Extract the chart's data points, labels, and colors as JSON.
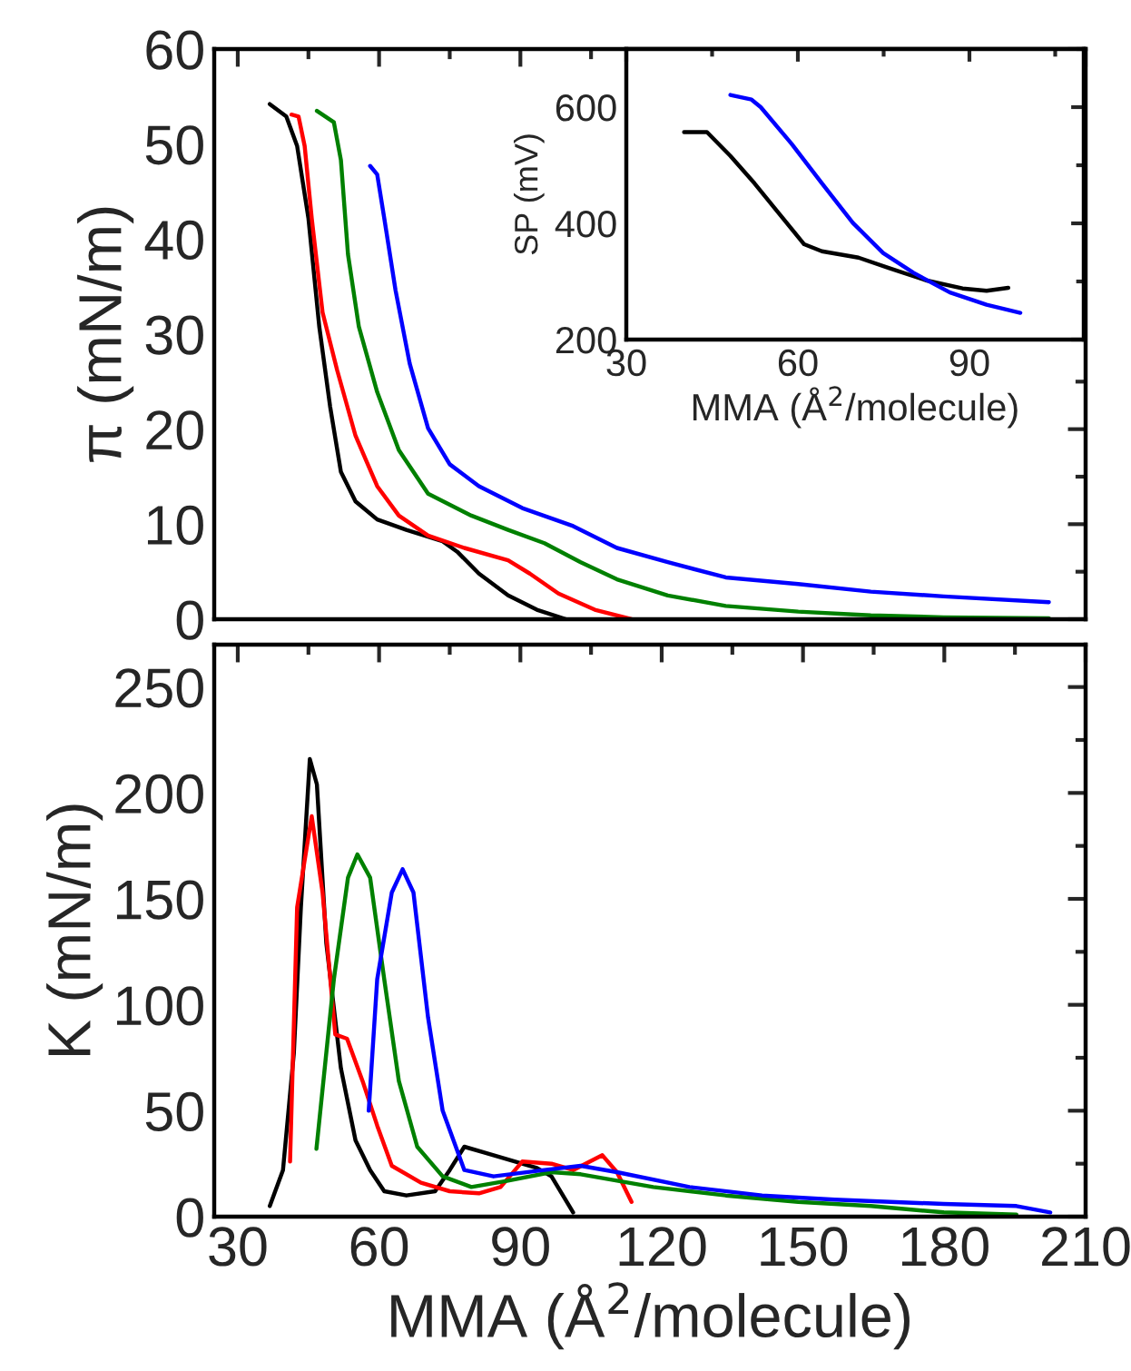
{
  "chart_data": [
    {
      "type": "line",
      "ylabel": "π (mN/m)",
      "xlim": [
        25,
        210
      ],
      "xticks": [
        30,
        60,
        90,
        120,
        150,
        180,
        210
      ],
      "ylim": [
        0,
        60
      ],
      "yticks": [
        0,
        10,
        20,
        30,
        40,
        50,
        60
      ],
      "tick_labels": "y",
      "legend": false,
      "series": [
        {
          "color": "#000000",
          "x": [
            36.8,
            40.3,
            42.6,
            45,
            47.3,
            49.6,
            51.9,
            55,
            59.6,
            65.8,
            73.5,
            76.6,
            81.2,
            87.4,
            93.5,
            99.7
          ],
          "values": [
            54.2,
            52.9,
            49.8,
            42.2,
            30.8,
            22.4,
            15.5,
            12.4,
            10.5,
            9.4,
            8.2,
            7.1,
            4.8,
            2.5,
            1.0,
            0
          ]
        },
        {
          "color": "#ff0000",
          "x": [
            41.4,
            42.9,
            44.2,
            45.7,
            48,
            51.1,
            55,
            59.6,
            64.2,
            70.4,
            78.1,
            87.4,
            92,
            98.1,
            105.8,
            113.6
          ],
          "values": [
            53.1,
            52.9,
            49.8,
            42.2,
            32.3,
            26.2,
            19.3,
            14,
            10.9,
            8.8,
            7.5,
            6.2,
            4.8,
            2.7,
            1.0,
            0
          ]
        },
        {
          "color": "#008000",
          "x": [
            46.8,
            50.4,
            51.9,
            53.4,
            55.7,
            59.6,
            64.2,
            70.4,
            79.6,
            87.4,
            95.1,
            102.8,
            110.5,
            121.3,
            133.6,
            149,
            164.4,
            179.9,
            202.2
          ],
          "values": [
            53.5,
            52.3,
            48.3,
            38.4,
            30.8,
            23.9,
            17.8,
            13.2,
            10.9,
            9.4,
            8.0,
            6.0,
            4.2,
            2.5,
            1.4,
            0.8,
            0.4,
            0.2,
            0.1
          ]
        },
        {
          "color": "#0000ff",
          "x": [
            58.1,
            59.6,
            61.1,
            63.5,
            66.5,
            70.4,
            75,
            81.2,
            90.4,
            101.2,
            110.5,
            121.3,
            133.6,
            149,
            164.4,
            179.9,
            202.2
          ],
          "values": [
            47.7,
            46.8,
            42.2,
            34.6,
            26.9,
            20.1,
            16.3,
            14.0,
            11.7,
            9.8,
            7.5,
            6.0,
            4.4,
            3.7,
            2.9,
            2.4,
            1.8
          ]
        }
      ]
    },
    {
      "type": "line",
      "xlabel": "MMA (Å$^{2}$/molecule)",
      "ylabel": "SP (mV)",
      "xlim": [
        30,
        110
      ],
      "xticks": [
        30,
        60,
        90
      ],
      "ylim": [
        200,
        700
      ],
      "yticks": [
        200,
        400,
        600
      ],
      "legend": false,
      "series": [
        {
          "color": "#000000",
          "x": [
            40.1,
            44.1,
            48.2,
            52.4,
            56.7,
            61.1,
            64.2,
            70.6,
            76,
            82.4,
            88.8,
            93,
            96.8
          ],
          "values": [
            557,
            557,
            516,
            469,
            417,
            364,
            352,
            341,
            323,
            302,
            288,
            284,
            289
          ]
        },
        {
          "color": "#0000ff",
          "x": [
            48.2,
            51.9,
            53.5,
            58.9,
            64.2,
            69.6,
            74.9,
            80.2,
            86.6,
            93,
            98.9
          ],
          "values": [
            621,
            613,
            600,
            537,
            469,
            401,
            349,
            315,
            281,
            260,
            246
          ]
        }
      ]
    },
    {
      "type": "line",
      "xlabel": "MMA (Å$^{2}$/molecule)",
      "ylabel": "K (mN/m)",
      "xlim": [
        25,
        210
      ],
      "xticks": [
        30,
        60,
        90,
        120,
        150,
        180,
        210
      ],
      "ylim": [
        0,
        270
      ],
      "yticks": [
        0,
        50,
        100,
        150,
        200,
        250
      ],
      "legend": false,
      "series": [
        {
          "color": "#000000",
          "x": [
            36.8,
            39.6,
            41.9,
            43.4,
            45.3,
            46.8,
            48.8,
            51.9,
            55,
            58.1,
            61.1,
            65.8,
            71.9,
            75,
            78.1,
            84.3,
            93.5,
            96.6,
            101.2
          ],
          "values": [
            5,
            22,
            77,
            146,
            216,
            204,
            129,
            70,
            36,
            22,
            12,
            10,
            12,
            22,
            33,
            29,
            23,
            19,
            2
          ]
        },
        {
          "color": "#ff0000",
          "x": [
            41.1,
            42.6,
            45.7,
            48,
            50.7,
            53.2,
            56.5,
            59.6,
            62.7,
            68.9,
            75,
            81.2,
            85.8,
            90.4,
            96.6,
            101.2,
            107.4,
            110.5,
            113.6
          ],
          "values": [
            26,
            146,
            189,
            153,
            86,
            84,
            64,
            43,
            24,
            16,
            12,
            11,
            14,
            26,
            25,
            22,
            29,
            21,
            7
          ]
        },
        {
          "color": "#008000",
          "x": [
            46.7,
            50.4,
            53.4,
            55.4,
            58.1,
            61.1,
            64.2,
            68.1,
            73.5,
            79.6,
            87.4,
            96.6,
            102.8,
            118.2,
            133.6,
            149,
            164.4,
            179.9,
            195.3
          ],
          "values": [
            32,
            112,
            160,
            171,
            160,
            112,
            64,
            33,
            19,
            14,
            17,
            21,
            20,
            14,
            10,
            7,
            5,
            2,
            1
          ]
        },
        {
          "color": "#0000ff",
          "x": [
            57.8,
            59.6,
            62.7,
            65,
            67.3,
            70.4,
            73.5,
            78.1,
            84.3,
            95.1,
            102.8,
            110.5,
            125.9,
            141.3,
            156.7,
            179.9,
            195.3,
            202.5
          ],
          "values": [
            50,
            112,
            153,
            164,
            153,
            94,
            50,
            22,
            19,
            22,
            24,
            21,
            14,
            10,
            8,
            6,
            5,
            2
          ]
        }
      ]
    }
  ]
}
